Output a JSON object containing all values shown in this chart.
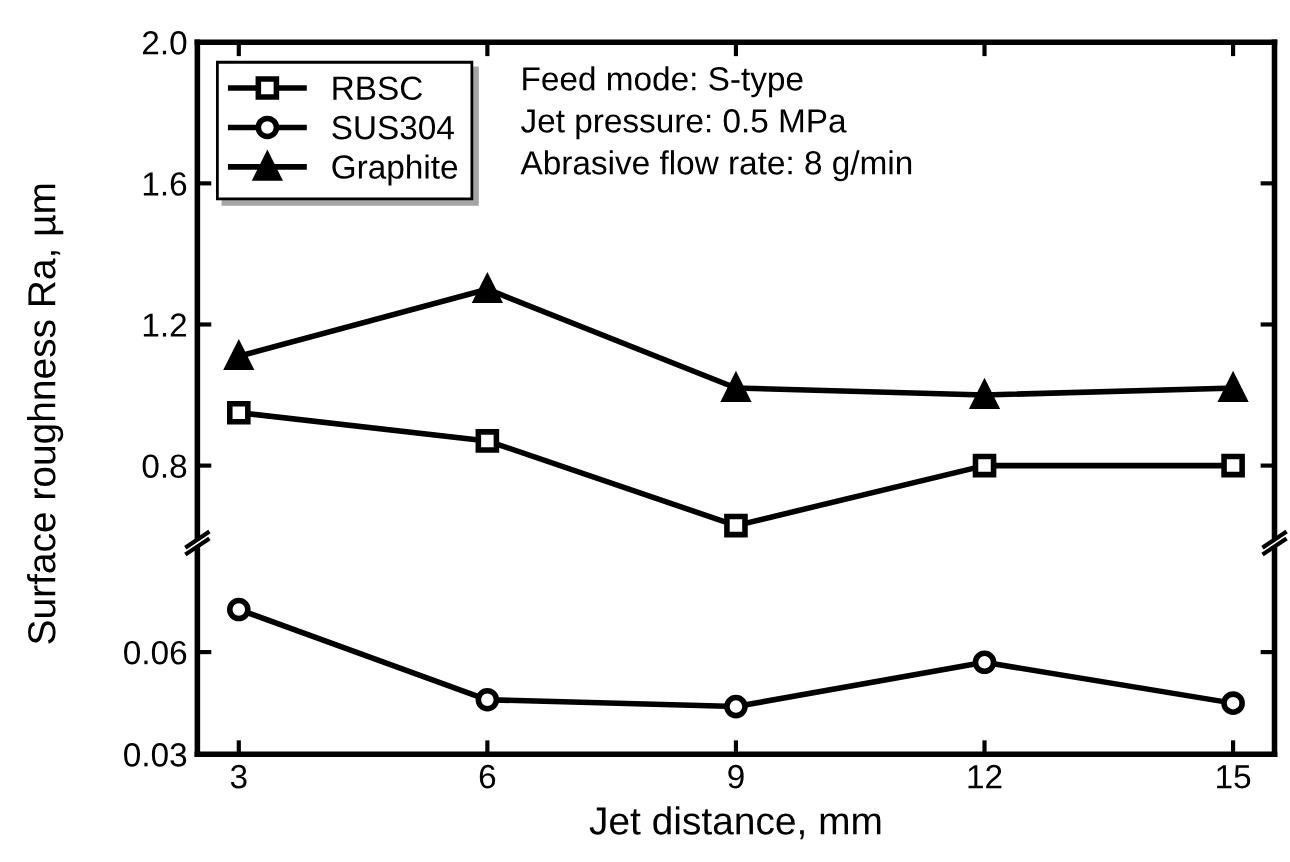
{
  "chart_data": [
    {
      "type": "line",
      "ylabel": "Surface roughness Ra, µm",
      "x": [
        3,
        6,
        9,
        12,
        15
      ],
      "xlim": [
        2.5,
        15.5
      ],
      "ylim": [
        0.6,
        2.0
      ],
      "yticks": [
        0.8,
        1.2,
        1.6,
        {
          "value": 2,
          "label": "2.0"
        }
      ],
      "tick_labels": "y",
      "legend": "top left",
      "grid": false,
      "line_style": "solid",
      "annotations": [
        "Feed mode: S-type",
        "Jet pressure: 0.5 MPa",
        "Abrasive flow rate: 8 g/min"
      ],
      "series": [
        {
          "name": "RBSC",
          "color": "#000000",
          "marker": "square",
          "values": [
            0.95,
            0.87,
            0.63,
            0.8,
            0.8
          ]
        },
        {
          "name": "Graphite",
          "color": "#000000",
          "marker": "triangle",
          "values": [
            1.11,
            1.3,
            1.02,
            1.0,
            1.02
          ]
        }
      ]
    },
    {
      "type": "line",
      "xlabel": "Jet distance, mm",
      "x": [
        3,
        6,
        9,
        12,
        15
      ],
      "xlim": [
        2.5,
        15.5
      ],
      "xticks": [
        3,
        6,
        9,
        12,
        15
      ],
      "ylim": [
        0.03,
        0.09
      ],
      "yticks": [
        0.03,
        0.06
      ],
      "grid": false,
      "line_style": "solid",
      "series": [
        {
          "name": "SUS304",
          "color": "#000000",
          "marker": "circle",
          "values": [
            0.0725,
            0.046,
            0.044,
            0.057,
            0.045
          ]
        }
      ]
    }
  ]
}
